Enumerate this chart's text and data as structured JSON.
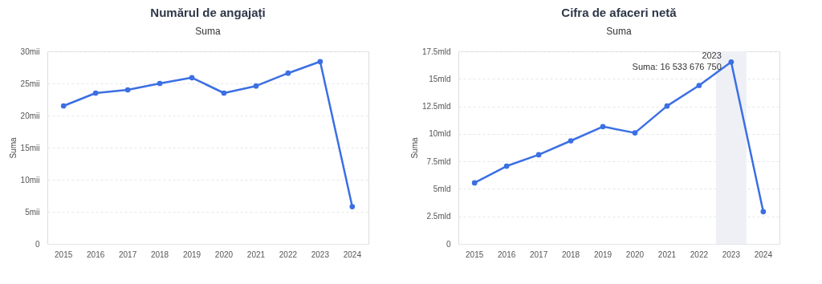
{
  "chart_data": [
    {
      "type": "line",
      "title": "Numărul de angajați",
      "subtitle": "Suma",
      "ylabel": "Suma",
      "categories": [
        "2015",
        "2016",
        "2017",
        "2018",
        "2019",
        "2020",
        "2021",
        "2022",
        "2023",
        "2024"
      ],
      "series": [
        {
          "color": "#3b6fe3",
          "values": [
            21.5,
            23.5,
            24.0,
            25.0,
            25.9,
            23.5,
            24.6,
            26.6,
            28.4,
            5.8
          ]
        }
      ],
      "ylim": [
        0,
        30
      ],
      "yticks": [
        0,
        {
          "value": 5,
          "label": "5mii"
        },
        {
          "value": 10,
          "label": "10mii"
        },
        {
          "value": 15,
          "label": "15mii"
        },
        {
          "value": 20,
          "label": "20mii"
        },
        {
          "value": 25,
          "label": "25mii"
        },
        {
          "value": 30,
          "label": "30mii"
        }
      ],
      "grid": "y",
      "marker": "circle",
      "line_style": "solid"
    },
    {
      "type": "line",
      "title": "Cifra de afaceri netă",
      "subtitle": "Suma",
      "ylabel": "Suma",
      "categories": [
        "2015",
        "2016",
        "2017",
        "2018",
        "2019",
        "2020",
        "2021",
        "2022",
        "2023",
        "2024"
      ],
      "series": [
        {
          "color": "#3b6fe3",
          "values": [
            5.55,
            7.07,
            8.1,
            9.37,
            10.66,
            10.09,
            12.53,
            14.4,
            16.53367675,
            2.93
          ]
        }
      ],
      "ylim": [
        0,
        17.5
      ],
      "yticks": [
        0,
        {
          "value": 2.5,
          "label": "2.5mld"
        },
        {
          "value": 5,
          "label": "5mld"
        },
        {
          "value": 7.5,
          "label": "7.5mld"
        },
        {
          "value": 10,
          "label": "10mld"
        },
        {
          "value": 12.5,
          "label": "12.5mld"
        },
        {
          "value": 15,
          "label": "15mld"
        },
        {
          "value": 17.5,
          "label": "17.5mld"
        }
      ],
      "bands": [
        {
          "axis": "x",
          "from": "2023",
          "to": "2023",
          "color": "#eef0f6"
        }
      ],
      "annotations": [
        {
          "text": "2023\nSuma: 16 533 676 750",
          "x": "2023",
          "y": 16.53367675
        }
      ],
      "grid": "y",
      "marker": "circle",
      "line_style": "solid"
    }
  ]
}
